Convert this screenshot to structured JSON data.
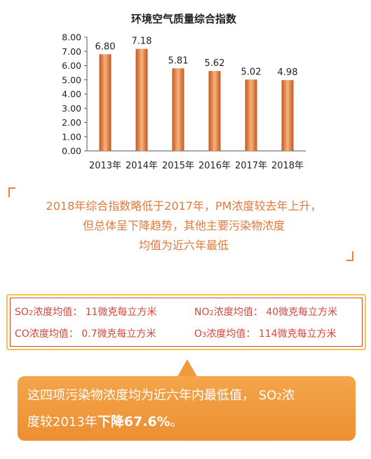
{
  "chart_data": {
    "type": "bar",
    "title": "环境空气质量综合指数",
    "categories": [
      "2013年",
      "2014年",
      "2015年",
      "2016年",
      "2017年",
      "2018年"
    ],
    "values": [
      6.8,
      7.18,
      5.81,
      5.62,
      5.02,
      4.98
    ],
    "value_labels": [
      "6.80",
      "7.18",
      "5.81",
      "5.62",
      "5.02",
      "4.98"
    ],
    "yticks": [
      "0.00",
      "1.00",
      "2.00",
      "3.00",
      "4.00",
      "5.00",
      "6.00",
      "7.00",
      "8.00"
    ],
    "ylim": [
      0,
      8
    ],
    "grid": false,
    "bar_color_dark": "#c4561c",
    "bar_color_light": "#f7b380"
  },
  "summary": {
    "line1": "2018年综合指数略低于2017年，PM浓度较去年上升，",
    "line2": "但总体呈下降趋势，其他主要污染物浓度",
    "line3": "均值为近六年最低"
  },
  "pollutants": {
    "so2": {
      "name": "SO",
      "sub": "2",
      "text": "浓度均值：  11微克每立方米"
    },
    "no2": {
      "name": "NO",
      "sub": "2",
      "text": "浓度均值：  40微克每立方米"
    },
    "co": {
      "text": "CO浓度均值：  0.7微克每立方米"
    },
    "o3": {
      "name": "O",
      "sub": "3",
      "text": "浓度均值：  114微克每立方米"
    }
  },
  "callout": {
    "line1_a": "这四项污染物浓度均为近六年内最低值，  SO",
    "line1_sub": "2",
    "line1_b": "浓",
    "line2_a": "度较2013年",
    "line2_emph": "下降67.6%",
    "line2_b": "。"
  },
  "colors": {
    "summary_text": "#e07a3c",
    "pollutant_text": "#d4463a",
    "box_outer": "#e9c84a",
    "callout_bg": "#f09a3e"
  }
}
